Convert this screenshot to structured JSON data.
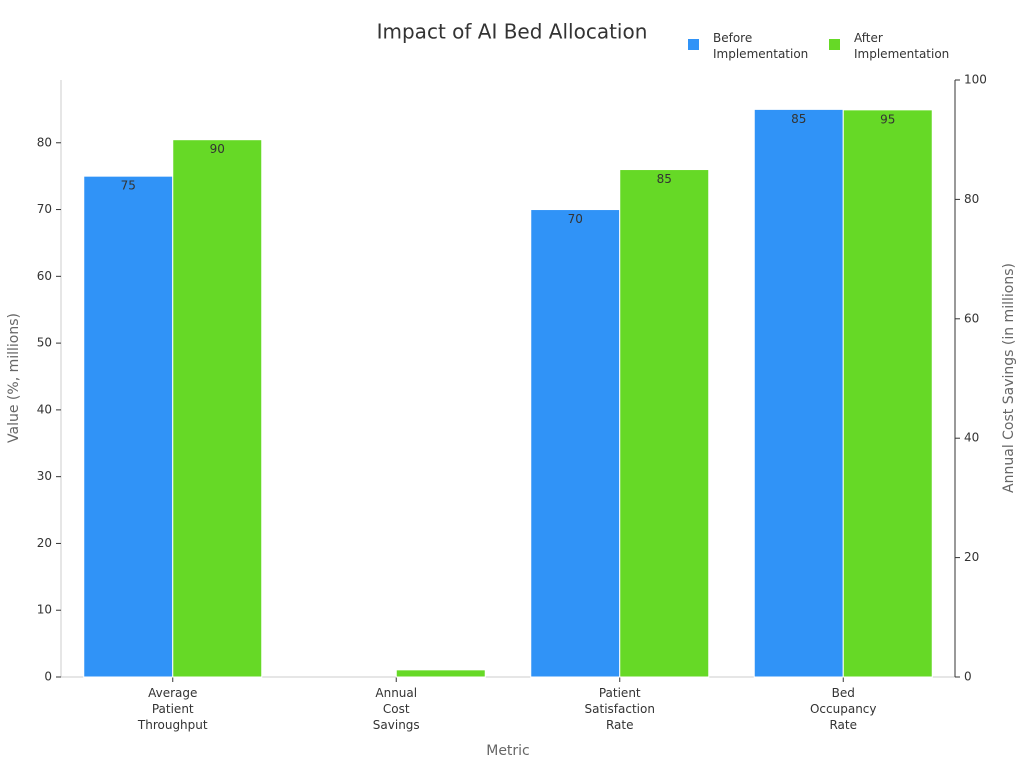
{
  "chart_data": {
    "type": "bar",
    "title": "Impact of AI Bed Allocation",
    "x_label": "Metric",
    "y_label": "Value (%, millions)",
    "y2_label": "Annual Cost Savings (in millions)",
    "categories": [
      "Average Patient Throughput",
      "Annual Cost Savings",
      "Patient Satisfaction Rate",
      "Bed Occupancy Rate"
    ],
    "series": [
      {
        "name": "Before Implementation",
        "color": "#3093f7",
        "values": [
          75,
          null,
          70,
          85
        ],
        "value_labels": [
          "75",
          null,
          "70",
          "85"
        ]
      },
      {
        "name": "After Implementation",
        "color": "#66d926",
        "axis": "y2",
        "values": [
          90,
          1.2,
          85,
          95
        ],
        "value_labels": [
          "90",
          null,
          "85",
          "95"
        ]
      }
    ],
    "ylim": [
      0,
      89.4
    ],
    "yticks": [
      0,
      10,
      20,
      30,
      40,
      50,
      60,
      70,
      80
    ],
    "y2lim": [
      0,
      100
    ],
    "y2ticks": [
      0,
      20,
      40,
      60,
      80,
      100
    ],
    "legend": "top-right"
  }
}
